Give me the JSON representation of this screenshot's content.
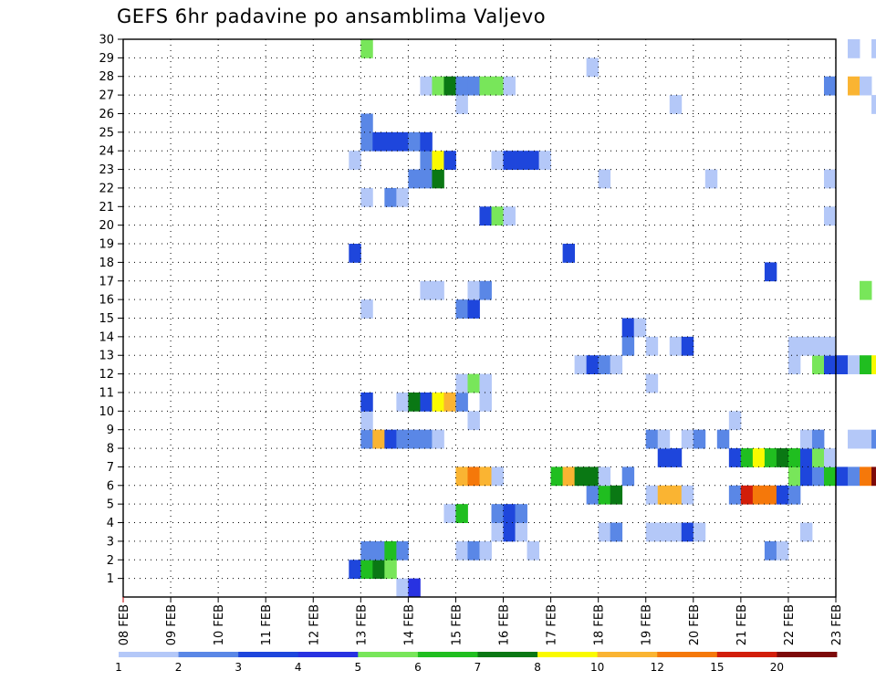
{
  "chart_data": {
    "type": "heatmap",
    "title": "GEFS 6hr padavine po ansamblima Valjevo",
    "xlabel": "",
    "ylabel": "",
    "x_ticks": [
      "08 FEB",
      "09 FEB",
      "10 FEB",
      "11 FEB",
      "12 FEB",
      "13 FEB",
      "14 FEB",
      "15 FEB",
      "16 FEB",
      "17 FEB",
      "18 FEB",
      "19 FEB",
      "20 FEB",
      "21 FEB",
      "22 FEB",
      "23 FEB"
    ],
    "y_ticks": [
      1,
      2,
      3,
      4,
      5,
      6,
      7,
      8,
      9,
      10,
      11,
      12,
      13,
      14,
      15,
      16,
      17,
      18,
      19,
      20,
      21,
      22,
      23,
      24,
      25,
      26,
      27,
      28,
      29,
      30
    ],
    "x_range": [
      "08 FEB 00Z",
      "23 FEB 00Z"
    ],
    "y_range": [
      0,
      30
    ],
    "time_step_hours": 6,
    "grid": true,
    "legend_position": "bottom",
    "colorbar": {
      "labels": [
        "1",
        "2",
        "3",
        "4",
        "5",
        "6",
        "7",
        "8",
        "10",
        "12",
        "15",
        "20"
      ],
      "colors": [
        "#b4c8f8",
        "#5a87e6",
        "#1e46dc",
        "#2832e1",
        "#78e65a",
        "#20be20",
        "#0a7814",
        "#fafa00",
        "#fab432",
        "#f5780a",
        "#d21e0a",
        "#7d0a0a"
      ]
    },
    "cells": [
      [
        "12 FEB 18Z",
        1,
        3
      ],
      [
        "13 FEB 00Z",
        1,
        6
      ],
      [
        "13 FEB 06Z",
        1,
        7
      ],
      [
        "13 FEB 12Z",
        1,
        5
      ],
      [
        "13 FEB 18Z",
        0,
        1
      ],
      [
        "14 FEB 00Z",
        0,
        4
      ],
      [
        "13 FEB 00Z",
        2,
        2
      ],
      [
        "13 FEB 06Z",
        2,
        2
      ],
      [
        "13 FEB 12Z",
        2,
        6
      ],
      [
        "13 FEB 18Z",
        2,
        2
      ],
      [
        "15 FEB 00Z",
        2,
        1
      ],
      [
        "15 FEB 06Z",
        2,
        2
      ],
      [
        "15 FEB 12Z",
        2,
        1
      ],
      [
        "16 FEB 12Z",
        2,
        1
      ],
      [
        "21 FEB 12Z",
        2,
        2
      ],
      [
        "21 FEB 18Z",
        2,
        1
      ],
      [
        "15 FEB 18Z",
        3,
        1
      ],
      [
        "16 FEB 00Z",
        3,
        3
      ],
      [
        "16 FEB 06Z",
        3,
        1
      ],
      [
        "18 FEB 00Z",
        3,
        1
      ],
      [
        "18 FEB 06Z",
        3,
        2
      ],
      [
        "19 FEB 00Z",
        3,
        1
      ],
      [
        "19 FEB 06Z",
        3,
        1
      ],
      [
        "19 FEB 12Z",
        3,
        1
      ],
      [
        "19 FEB 18Z",
        3,
        3
      ],
      [
        "20 FEB 00Z",
        3,
        1
      ],
      [
        "22 FEB 06Z",
        3,
        1
      ],
      [
        "14 FEB 18Z",
        4,
        1
      ],
      [
        "15 FEB 00Z",
        4,
        6
      ],
      [
        "15 FEB 18Z",
        4,
        2
      ],
      [
        "16 FEB 00Z",
        4,
        3
      ],
      [
        "16 FEB 06Z",
        4,
        2
      ],
      [
        "17 FEB 18Z",
        5,
        2
      ],
      [
        "18 FEB 00Z",
        5,
        6
      ],
      [
        "18 FEB 06Z",
        5,
        7
      ],
      [
        "19 FEB 00Z",
        5,
        1
      ],
      [
        "19 FEB 06Z",
        5,
        10
      ],
      [
        "19 FEB 12Z",
        5,
        10
      ],
      [
        "19 FEB 18Z",
        5,
        1
      ],
      [
        "20 FEB 18Z",
        5,
        2
      ],
      [
        "21 FEB 00Z",
        5,
        15
      ],
      [
        "21 FEB 06Z",
        5,
        12
      ],
      [
        "21 FEB 12Z",
        5,
        12
      ],
      [
        "21 FEB 18Z",
        5,
        3
      ],
      [
        "22 FEB 00Z",
        5,
        2
      ],
      [
        "15 FEB 00Z",
        6,
        10
      ],
      [
        "15 FEB 06Z",
        6,
        12
      ],
      [
        "15 FEB 12Z",
        6,
        10
      ],
      [
        "15 FEB 18Z",
        6,
        1
      ],
      [
        "17 FEB 00Z",
        6,
        6
      ],
      [
        "17 FEB 06Z",
        6,
        10
      ],
      [
        "17 FEB 12Z",
        6,
        7
      ],
      [
        "17 FEB 18Z",
        6,
        7
      ],
      [
        "18 FEB 00Z",
        6,
        1
      ],
      [
        "18 FEB 12Z",
        6,
        2
      ],
      [
        "22 FEB 00Z",
        6,
        5
      ],
      [
        "22 FEB 06Z",
        6,
        3
      ],
      [
        "22 FEB 12Z",
        6,
        2
      ],
      [
        "22 FEB 18Z",
        6,
        6
      ],
      [
        "23 FEB 00Z",
        6,
        3
      ],
      [
        "23 FEB 06Z",
        6,
        2
      ],
      [
        "23 FEB 12Z",
        6,
        12
      ],
      [
        "23 FEB 18Z",
        6,
        20
      ],
      [
        "19 FEB 06Z",
        7,
        3
      ],
      [
        "19 FEB 12Z",
        7,
        3
      ],
      [
        "20 FEB 18Z",
        7,
        3
      ],
      [
        "21 FEB 00Z",
        7,
        6
      ],
      [
        "21 FEB 06Z",
        7,
        8
      ],
      [
        "21 FEB 12Z",
        7,
        6
      ],
      [
        "21 FEB 18Z",
        7,
        7
      ],
      [
        "22 FEB 00Z",
        7,
        6
      ],
      [
        "22 FEB 06Z",
        7,
        3
      ],
      [
        "22 FEB 12Z",
        7,
        5
      ],
      [
        "22 FEB 18Z",
        7,
        1
      ],
      [
        "13 FEB 00Z",
        8,
        2
      ],
      [
        "13 FEB 06Z",
        8,
        10
      ],
      [
        "13 FEB 12Z",
        8,
        3
      ],
      [
        "13 FEB 18Z",
        8,
        2
      ],
      [
        "14 FEB 00Z",
        8,
        2
      ],
      [
        "14 FEB 06Z",
        8,
        2
      ],
      [
        "14 FEB 12Z",
        8,
        1
      ],
      [
        "19 FEB 00Z",
        8,
        2
      ],
      [
        "19 FEB 06Z",
        8,
        1
      ],
      [
        "19 FEB 18Z",
        8,
        1
      ],
      [
        "20 FEB 00Z",
        8,
        2
      ],
      [
        "20 FEB 12Z",
        8,
        2
      ],
      [
        "22 FEB 06Z",
        8,
        1
      ],
      [
        "22 FEB 12Z",
        8,
        2
      ],
      [
        "23 FEB 06Z",
        8,
        1
      ],
      [
        "23 FEB 12Z",
        8,
        1
      ],
      [
        "23 FEB 18Z",
        8,
        2
      ],
      [
        "13 FEB 00Z",
        9,
        1
      ],
      [
        "15 FEB 06Z",
        9,
        1
      ],
      [
        "20 FEB 18Z",
        9,
        1
      ],
      [
        "13 FEB 00Z",
        10,
        3
      ],
      [
        "13 FEB 18Z",
        10,
        1
      ],
      [
        "14 FEB 00Z",
        10,
        7
      ],
      [
        "14 FEB 06Z",
        10,
        3
      ],
      [
        "14 FEB 12Z",
        10,
        8
      ],
      [
        "14 FEB 18Z",
        10,
        10
      ],
      [
        "15 FEB 00Z",
        10,
        2
      ],
      [
        "15 FEB 12Z",
        10,
        1
      ],
      [
        "15 FEB 00Z",
        11,
        1
      ],
      [
        "15 FEB 06Z",
        11,
        5
      ],
      [
        "15 FEB 12Z",
        11,
        1
      ],
      [
        "19 FEB 00Z",
        11,
        1
      ],
      [
        "17 FEB 12Z",
        12,
        1
      ],
      [
        "17 FEB 18Z",
        12,
        3
      ],
      [
        "18 FEB 00Z",
        12,
        2
      ],
      [
        "18 FEB 06Z",
        12,
        1
      ],
      [
        "22 FEB 00Z",
        12,
        1
      ],
      [
        "22 FEB 12Z",
        12,
        5
      ],
      [
        "22 FEB 18Z",
        12,
        3
      ],
      [
        "23 FEB 00Z",
        12,
        3
      ],
      [
        "23 FEB 06Z",
        12,
        1
      ],
      [
        "23 FEB 12Z",
        12,
        6
      ],
      [
        "23 FEB 18Z",
        12,
        8
      ],
      [
        "18 FEB 12Z",
        13,
        2
      ],
      [
        "19 FEB 00Z",
        13,
        1
      ],
      [
        "19 FEB 12Z",
        13,
        1
      ],
      [
        "19 FEB 18Z",
        13,
        3
      ],
      [
        "22 FEB 00Z",
        13,
        1
      ],
      [
        "22 FEB 06Z",
        13,
        1
      ],
      [
        "22 FEB 12Z",
        13,
        1
      ],
      [
        "22 FEB 18Z",
        13,
        1
      ],
      [
        "18 FEB 12Z",
        14,
        3
      ],
      [
        "18 FEB 18Z",
        14,
        1
      ],
      [
        "13 FEB 00Z",
        15,
        1
      ],
      [
        "15 FEB 00Z",
        15,
        2
      ],
      [
        "15 FEB 06Z",
        15,
        3
      ],
      [
        "14 FEB 06Z",
        16,
        1
      ],
      [
        "14 FEB 12Z",
        16,
        1
      ],
      [
        "15 FEB 06Z",
        16,
        1
      ],
      [
        "15 FEB 12Z",
        16,
        2
      ],
      [
        "23 FEB 12Z",
        16,
        5
      ],
      [
        "21 FEB 12Z",
        17,
        3
      ],
      [
        "12 FEB 18Z",
        18,
        3
      ],
      [
        "17 FEB 06Z",
        18,
        3
      ],
      [
        "15 FEB 12Z",
        20,
        3
      ],
      [
        "15 FEB 18Z",
        20,
        5
      ],
      [
        "16 FEB 00Z",
        20,
        1
      ],
      [
        "22 FEB 18Z",
        20,
        1
      ],
      [
        "13 FEB 00Z",
        21,
        1
      ],
      [
        "13 FEB 12Z",
        21,
        2
      ],
      [
        "13 FEB 18Z",
        21,
        1
      ],
      [
        "14 FEB 00Z",
        22,
        2
      ],
      [
        "14 FEB 06Z",
        22,
        2
      ],
      [
        "14 FEB 12Z",
        22,
        7
      ],
      [
        "18 FEB 00Z",
        22,
        1
      ],
      [
        "20 FEB 06Z",
        22,
        1
      ],
      [
        "22 FEB 18Z",
        22,
        1
      ],
      [
        "12 FEB 18Z",
        23,
        1
      ],
      [
        "14 FEB 06Z",
        23,
        2
      ],
      [
        "14 FEB 12Z",
        23,
        8
      ],
      [
        "14 FEB 18Z",
        23,
        3
      ],
      [
        "15 FEB 18Z",
        23,
        1
      ],
      [
        "16 FEB 00Z",
        23,
        3
      ],
      [
        "16 FEB 06Z",
        23,
        3
      ],
      [
        "16 FEB 12Z",
        23,
        3
      ],
      [
        "16 FEB 18Z",
        23,
        1
      ],
      [
        "13 FEB 00Z",
        24,
        2
      ],
      [
        "13 FEB 06Z",
        24,
        3
      ],
      [
        "13 FEB 12Z",
        24,
        3
      ],
      [
        "13 FEB 18Z",
        24,
        3
      ],
      [
        "14 FEB 00Z",
        24,
        2
      ],
      [
        "14 FEB 06Z",
        24,
        3
      ],
      [
        "13 FEB 00Z",
        25,
        2
      ],
      [
        "15 FEB 00Z",
        26,
        1
      ],
      [
        "19 FEB 12Z",
        26,
        1
      ],
      [
        "23 FEB 18Z",
        26,
        1
      ],
      [
        "14 FEB 06Z",
        27,
        1
      ],
      [
        "14 FEB 12Z",
        27,
        5
      ],
      [
        "14 FEB 18Z",
        27,
        7
      ],
      [
        "15 FEB 00Z",
        27,
        2
      ],
      [
        "15 FEB 06Z",
        27,
        2
      ],
      [
        "15 FEB 12Z",
        27,
        5
      ],
      [
        "15 FEB 18Z",
        27,
        5
      ],
      [
        "16 FEB 00Z",
        27,
        1
      ],
      [
        "22 FEB 18Z",
        27,
        2
      ],
      [
        "23 FEB 06Z",
        27,
        10
      ],
      [
        "23 FEB 12Z",
        27,
        1
      ],
      [
        "17 FEB 18Z",
        28,
        1
      ],
      [
        "13 FEB 00Z",
        29,
        5
      ],
      [
        "23 FEB 06Z",
        29,
        1
      ],
      [
        "23 FEB 18Z",
        29,
        1
      ]
    ]
  }
}
